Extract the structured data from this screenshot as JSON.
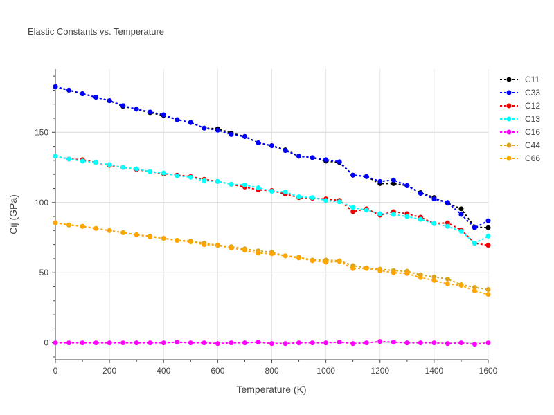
{
  "chart_data": {
    "type": "line",
    "title": "Elastic Constants vs. Temperature",
    "xlabel": "Temperature (K)",
    "ylabel": "Cij (GPa)",
    "xlim": [
      0,
      1600
    ],
    "ylim": [
      -12,
      195
    ],
    "xticks": [
      0,
      200,
      400,
      600,
      800,
      1000,
      1200,
      1400,
      1600
    ],
    "yticks": [
      0,
      50,
      100,
      150
    ],
    "grid": true,
    "legend_position": "top-right",
    "x": [
      0,
      50,
      100,
      150,
      200,
      250,
      300,
      350,
      400,
      450,
      500,
      550,
      600,
      650,
      700,
      750,
      800,
      850,
      900,
      950,
      1000,
      1050,
      1100,
      1150,
      1200,
      1250,
      1300,
      1350,
      1400,
      1450,
      1500,
      1550,
      1600
    ],
    "series": [
      {
        "name": "C11",
        "color": "#000000",
        "values": [
          182.5,
          180,
          177.5,
          175,
          172.5,
          168.5,
          166.5,
          164,
          162,
          159,
          157,
          153,
          152.5,
          149.5,
          147,
          142.5,
          140.5,
          137.5,
          133,
          132,
          129.5,
          128.5,
          119.5,
          118.5,
          113.5,
          113.5,
          112,
          107,
          103.5,
          99.5,
          95.5,
          82.5,
          82
        ]
      },
      {
        "name": "C33",
        "color": "#0000ff",
        "values": [
          182.5,
          180,
          177.5,
          175,
          172.5,
          169,
          166.5,
          164.5,
          162.5,
          159,
          157,
          153,
          151.5,
          148.5,
          147,
          142.5,
          140.5,
          137,
          133,
          132,
          130.5,
          129,
          119.5,
          118.5,
          115,
          116,
          112,
          106.5,
          102.5,
          100,
          91.5,
          82,
          87
        ]
      },
      {
        "name": "C12",
        "color": "#ee0000",
        "values": [
          133,
          131,
          130.5,
          128.5,
          126.5,
          125,
          123.5,
          122,
          120.5,
          119.5,
          118.5,
          116.5,
          115,
          113,
          111,
          109,
          108.5,
          106,
          103.5,
          103,
          102.5,
          101.5,
          93.5,
          95.5,
          91,
          93.5,
          92,
          89.5,
          85,
          85.5,
          80.5,
          71,
          69.5
        ]
      },
      {
        "name": "C13",
        "color": "#00ffff",
        "values": [
          133,
          131,
          129.5,
          128.5,
          127,
          125,
          124,
          122,
          121,
          119,
          118,
          115.5,
          115,
          113,
          112.5,
          110.5,
          108,
          107.5,
          104,
          103.5,
          101.5,
          100.5,
          96.5,
          94.5,
          92,
          91.5,
          90,
          88,
          85,
          83,
          79.5,
          71,
          76
        ]
      },
      {
        "name": "C16",
        "color": "#ff00ff",
        "values": [
          0,
          0,
          0,
          0,
          0,
          0,
          0,
          0,
          0,
          0.5,
          0,
          0,
          -0.5,
          0,
          0,
          0.5,
          -0.5,
          -0.5,
          0,
          0,
          0,
          0.5,
          -0.5,
          0,
          1,
          0.5,
          0,
          0,
          0,
          -0.5,
          0,
          -1,
          0
        ]
      },
      {
        "name": "C44",
        "color": "#daa520",
        "values": [
          85.5,
          84,
          83,
          81.5,
          80,
          78.5,
          77,
          76,
          74.5,
          73,
          72.5,
          71,
          69.5,
          68.5,
          67,
          65.5,
          64.5,
          62,
          61,
          59,
          59,
          58.5,
          55,
          53.5,
          52.5,
          51.5,
          51,
          48.5,
          47,
          45.5,
          41.5,
          39.5,
          38
        ]
      },
      {
        "name": "C66",
        "color": "#ffa500",
        "values": [
          85.5,
          84,
          83,
          81.5,
          80,
          78.5,
          77,
          75.5,
          74.5,
          73,
          72,
          70,
          69.5,
          67.5,
          66,
          64,
          63.5,
          62,
          60.5,
          58.5,
          57.5,
          58,
          53,
          53,
          51.5,
          50,
          49.5,
          46.5,
          44.5,
          42,
          41,
          37,
          34.5
        ]
      }
    ]
  }
}
